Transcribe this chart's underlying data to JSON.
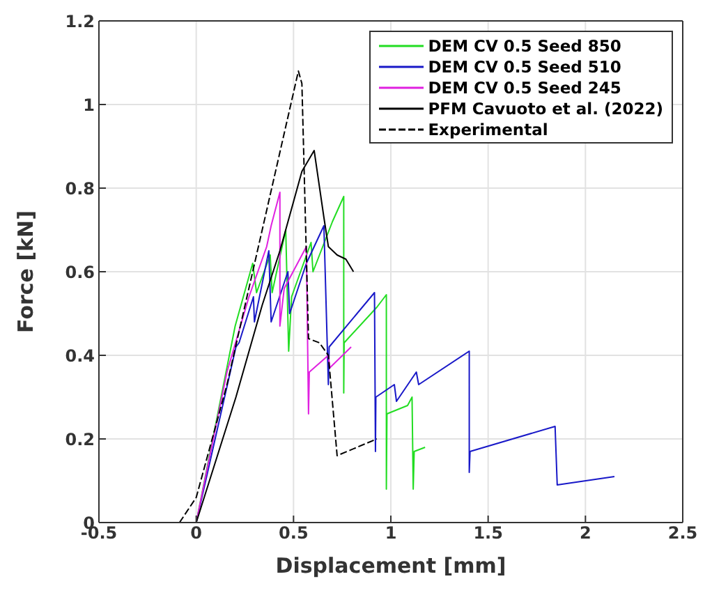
{
  "chart_data": {
    "type": "line",
    "xlabel": "Displacement [mm]",
    "ylabel": "Force [kN]",
    "xlim": [
      -0.5,
      2.5
    ],
    "xticks": [
      -0.5,
      0,
      0.5,
      1,
      1.5,
      2,
      2.5
    ],
    "ylim": [
      0,
      1.2
    ],
    "yticks": [
      0,
      0.2,
      0.4,
      0.6,
      0.8,
      1,
      1.2
    ],
    "grid": true,
    "legend": "top right",
    "marker": "none",
    "series": [
      {
        "name": "DEM CV 0.5 Seed 850",
        "color": "#22dd22",
        "line_style": "solid",
        "x": [
          0,
          0.2,
          0.29,
          0.31,
          0.38,
          0.39,
          0.46,
          0.475,
          0.49,
          0.59,
          0.6,
          0.7,
          0.758,
          0.758,
          0.76,
          0.928,
          0.977,
          0.977,
          0.98,
          1.086,
          1.109,
          1.115,
          1.12,
          1.176
        ],
        "values": [
          0,
          0.47,
          0.62,
          0.55,
          0.64,
          0.55,
          0.7,
          0.41,
          0.54,
          0.67,
          0.6,
          0.72,
          0.78,
          0.31,
          0.43,
          0.515,
          0.545,
          0.08,
          0.26,
          0.28,
          0.3,
          0.08,
          0.17,
          0.18
        ]
      },
      {
        "name": "DEM CV 0.5 Seed 510",
        "color": "#1818c8",
        "line_style": "solid",
        "x": [
          0,
          0.204,
          0.22,
          0.294,
          0.299,
          0.373,
          0.385,
          0.471,
          0.48,
          0.566,
          0.656,
          0.679,
          0.683,
          0.916,
          0.921,
          0.923,
          1.018,
          1.029,
          1.131,
          1.143,
          1.403,
          1.403,
          1.407,
          1.844,
          1.855,
          2.149
        ],
        "values": [
          0,
          0.42,
          0.43,
          0.54,
          0.48,
          0.65,
          0.48,
          0.6,
          0.5,
          0.62,
          0.71,
          0.33,
          0.42,
          0.55,
          0.17,
          0.3,
          0.33,
          0.29,
          0.36,
          0.33,
          0.41,
          0.12,
          0.17,
          0.23,
          0.09,
          0.11
        ]
      },
      {
        "name": "DEM CV 0.5 Seed 245",
        "color": "#e020e0",
        "line_style": "solid",
        "x": [
          0,
          0.158,
          0.271,
          0.362,
          0.385,
          0.43,
          0.43,
          0.452,
          0.566,
          0.577,
          0.581,
          0.679,
          0.686,
          0.796
        ],
        "values": [
          0,
          0.36,
          0.54,
          0.66,
          0.71,
          0.79,
          0.47,
          0.56,
          0.66,
          0.26,
          0.36,
          0.4,
          0.37,
          0.42
        ]
      },
      {
        "name": "PFM Cavuoto et al. (2022)",
        "color": "#000000",
        "line_style": "solid",
        "x": [
          0,
          0.204,
          0.339,
          0.43,
          0.543,
          0.606,
          0.656,
          0.679,
          0.724,
          0.769,
          0.808
        ],
        "values": [
          0,
          0.3,
          0.52,
          0.65,
          0.84,
          0.89,
          0.73,
          0.66,
          0.64,
          0.63,
          0.6
        ]
      },
      {
        "name": "Experimental",
        "color": "#000000",
        "line_style": "dashed",
        "x": [
          -0.086,
          0,
          0.158,
          0.525,
          0.543,
          0.577,
          0.633,
          0.679,
          0.724,
          0.928
        ],
        "values": [
          0,
          0.06,
          0.33,
          1.08,
          1.05,
          0.44,
          0.43,
          0.4,
          0.16,
          0.2
        ]
      }
    ]
  }
}
